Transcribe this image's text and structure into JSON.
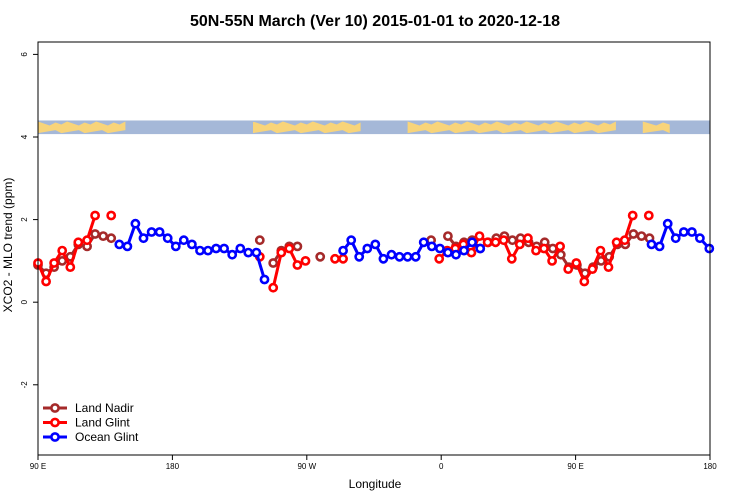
{
  "chart_data": {
    "type": "line",
    "title": "50N-55N March (Ver 10)   2015-01-01 to 2020-12-18",
    "xlabel": "Longitude",
    "ylabel": "XCO2 - MLO trend (ppm)",
    "xlim": [
      0,
      100
    ],
    "ylim": [
      -3.7,
      6.3
    ],
    "x_ticks": [
      {
        "pos": 0,
        "label": "90 E"
      },
      {
        "pos": 20,
        "label": "180"
      },
      {
        "pos": 40,
        "label": "90 W"
      },
      {
        "pos": 60,
        "label": "0"
      },
      {
        "pos": 80,
        "label": "90 E"
      },
      {
        "pos": 100,
        "label": "180"
      }
    ],
    "y_ticks": [
      {
        "value": -2,
        "label": "-2"
      },
      {
        "value": 0,
        "label": "0"
      },
      {
        "value": 2,
        "label": "2"
      },
      {
        "value": 4,
        "label": "4"
      },
      {
        "value": 6,
        "label": "6"
      }
    ],
    "land_ocean_band": {
      "ymin": 4.07,
      "ymax": 4.4,
      "land_color": "#f8d47a",
      "ocean_color": "#a5b8d8"
    },
    "legend_position": "bottom-left",
    "series": [
      {
        "name": "Land Nadir",
        "color": "#a52a2a",
        "segments": [
          [
            [
              0,
              0.9
            ],
            [
              1.2,
              0.7
            ],
            [
              2.4,
              0.85
            ],
            [
              3.6,
              1.0
            ],
            [
              4.8,
              1.1
            ],
            [
              6.0,
              1.4
            ],
            [
              7.3,
              1.35
            ],
            [
              8.5,
              1.65
            ],
            [
              9.7,
              1.6
            ],
            [
              10.9,
              1.55
            ]
          ],
          [
            [
              33.0,
              1.5
            ]
          ],
          [
            [
              35.0,
              0.95
            ],
            [
              36.2,
              1.25
            ],
            [
              37.4,
              1.35
            ],
            [
              38.6,
              1.35
            ]
          ],
          [
            [
              42.0,
              1.1
            ]
          ],
          [
            [
              58.5,
              1.5
            ]
          ],
          [
            [
              61.0,
              1.6
            ],
            [
              62.2,
              1.35
            ],
            [
              63.4,
              1.45
            ],
            [
              64.6,
              1.5
            ],
            [
              65.8,
              1.3
            ],
            [
              67.0,
              1.45
            ],
            [
              68.2,
              1.55
            ],
            [
              69.4,
              1.6
            ],
            [
              70.6,
              1.5
            ],
            [
              71.8,
              1.55
            ],
            [
              73.0,
              1.45
            ],
            [
              74.2,
              1.35
            ],
            [
              75.4,
              1.45
            ],
            [
              76.6,
              1.3
            ],
            [
              77.8,
              1.15
            ],
            [
              79.0,
              0.85
            ],
            [
              80.2,
              0.9
            ],
            [
              81.4,
              0.7
            ],
            [
              82.6,
              0.85
            ],
            [
              83.8,
              1.0
            ],
            [
              85.0,
              1.1
            ],
            [
              86.2,
              1.4
            ],
            [
              87.4,
              1.4
            ],
            [
              88.6,
              1.65
            ],
            [
              89.8,
              1.6
            ],
            [
              91.0,
              1.55
            ]
          ]
        ]
      },
      {
        "name": "Land Glint",
        "color": "#ff0000",
        "segments": [
          [
            [
              0,
              0.95
            ],
            [
              1.2,
              0.5
            ],
            [
              2.4,
              0.95
            ],
            [
              3.6,
              1.25
            ],
            [
              4.8,
              0.85
            ],
            [
              6.0,
              1.45
            ],
            [
              7.3,
              1.5
            ],
            [
              8.5,
              2.1
            ]
          ],
          [
            [
              10.9,
              2.1
            ]
          ],
          [
            [
              33.0,
              1.1
            ]
          ],
          [
            [
              35.0,
              0.35
            ],
            [
              36.2,
              1.2
            ],
            [
              37.4,
              1.3
            ],
            [
              38.6,
              0.9
            ],
            [
              39.8,
              1.0
            ]
          ],
          [
            [
              44.2,
              1.05
            ],
            [
              45.4,
              1.05
            ]
          ],
          [
            [
              59.7,
              1.05
            ],
            [
              60.9,
              1.25
            ],
            [
              62.1,
              1.3
            ],
            [
              63.3,
              1.4
            ],
            [
              64.5,
              1.2
            ],
            [
              65.7,
              1.6
            ],
            [
              66.9,
              1.45
            ],
            [
              68.1,
              1.45
            ],
            [
              69.3,
              1.5
            ],
            [
              70.5,
              1.05
            ],
            [
              71.7,
              1.4
            ],
            [
              72.9,
              1.55
            ],
            [
              74.1,
              1.25
            ],
            [
              75.3,
              1.3
            ],
            [
              76.5,
              1.0
            ],
            [
              77.7,
              1.35
            ]
          ],
          [
            [
              78.9,
              0.8
            ],
            [
              80.1,
              0.95
            ],
            [
              81.3,
              0.5
            ],
            [
              82.5,
              0.8
            ],
            [
              83.7,
              1.25
            ],
            [
              84.9,
              0.85
            ],
            [
              86.1,
              1.45
            ],
            [
              87.3,
              1.5
            ],
            [
              88.5,
              2.1
            ]
          ],
          [
            [
              90.9,
              2.1
            ]
          ]
        ]
      },
      {
        "name": "Ocean Glint",
        "color": "#0000ff",
        "segments": [
          [
            [
              12.1,
              1.4
            ],
            [
              13.3,
              1.35
            ],
            [
              14.5,
              1.9
            ],
            [
              15.7,
              1.55
            ],
            [
              16.9,
              1.7
            ],
            [
              18.1,
              1.7
            ],
            [
              19.3,
              1.55
            ],
            [
              20.5,
              1.35
            ],
            [
              21.7,
              1.5
            ],
            [
              22.9,
              1.4
            ],
            [
              24.1,
              1.25
            ],
            [
              25.3,
              1.25
            ],
            [
              26.5,
              1.3
            ],
            [
              27.7,
              1.3
            ],
            [
              28.9,
              1.15
            ],
            [
              30.1,
              1.3
            ],
            [
              31.3,
              1.2
            ],
            [
              32.5,
              1.2
            ],
            [
              33.7,
              0.55
            ]
          ],
          [
            [
              45.4,
              1.25
            ],
            [
              46.6,
              1.5
            ],
            [
              47.8,
              1.1
            ],
            [
              49.0,
              1.3
            ],
            [
              50.2,
              1.4
            ],
            [
              51.4,
              1.05
            ],
            [
              52.6,
              1.15
            ],
            [
              53.8,
              1.1
            ],
            [
              55.0,
              1.1
            ],
            [
              56.2,
              1.1
            ],
            [
              57.4,
              1.45
            ],
            [
              58.6,
              1.35
            ],
            [
              59.8,
              1.3
            ],
            [
              61.0,
              1.2
            ],
            [
              62.2,
              1.15
            ],
            [
              63.4,
              1.25
            ],
            [
              64.6,
              1.45
            ],
            [
              65.8,
              1.3
            ]
          ],
          [
            [
              91.3,
              1.4
            ],
            [
              92.5,
              1.35
            ],
            [
              93.7,
              1.9
            ],
            [
              94.9,
              1.55
            ],
            [
              96.1,
              1.7
            ],
            [
              97.3,
              1.7
            ],
            [
              98.5,
              1.55
            ],
            [
              99.9,
              1.3
            ]
          ]
        ]
      }
    ]
  }
}
